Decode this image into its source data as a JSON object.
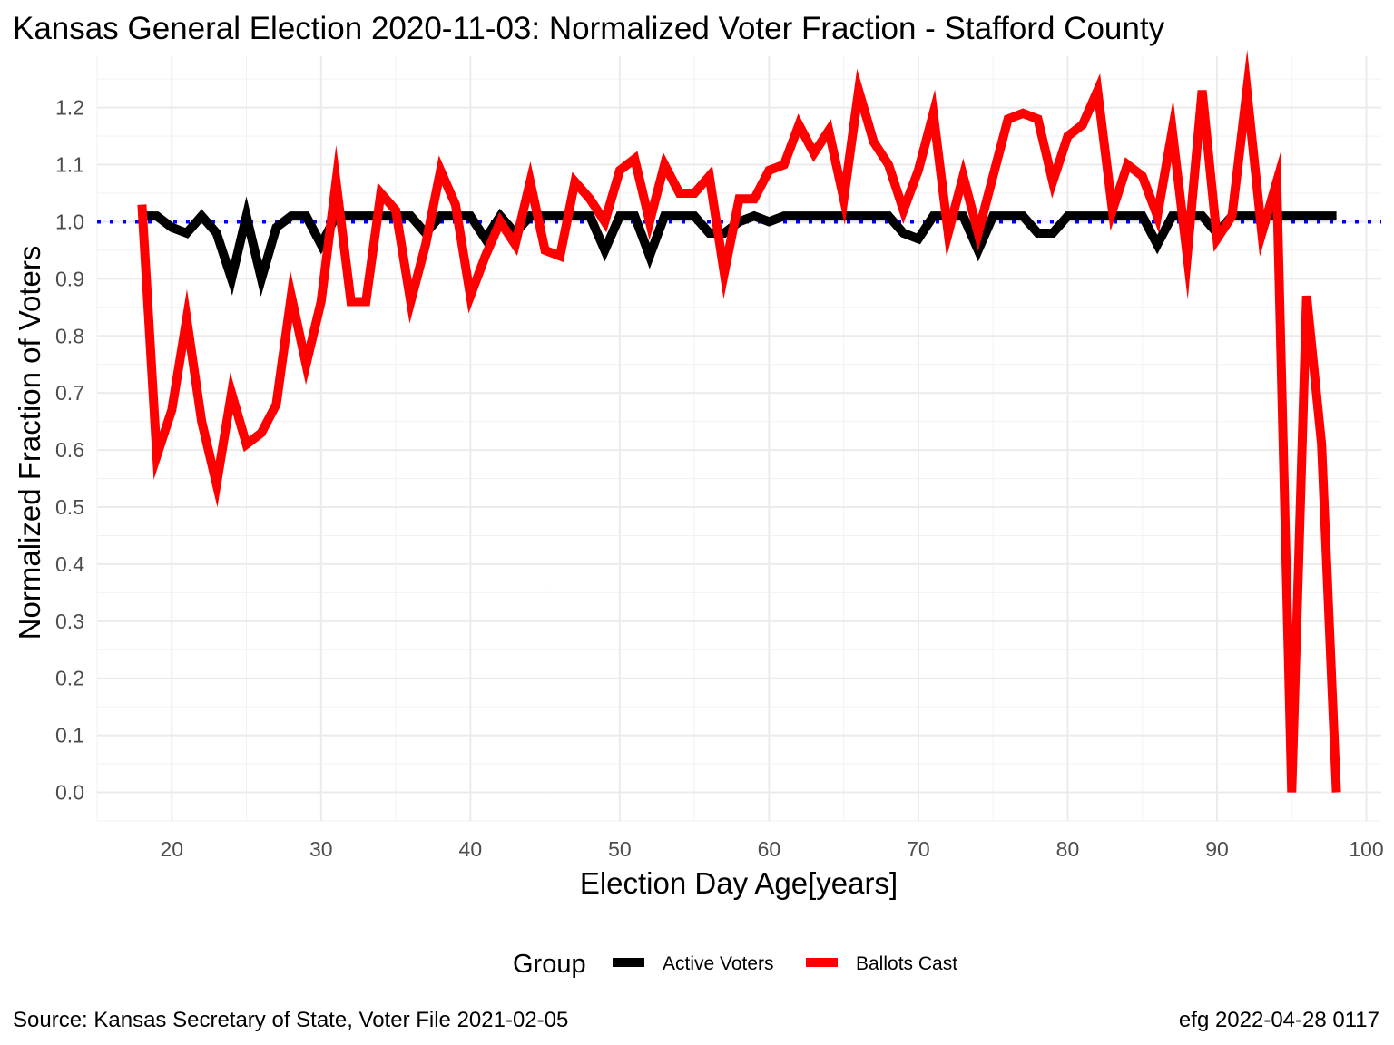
{
  "chart_data": {
    "type": "line",
    "title": "Kansas General Election 2020-11-03:  Normalized Voter Fraction - Stafford County",
    "xlabel": "Election Day Age[years]",
    "ylabel": "Normalized Fraction of Voters",
    "xlim": [
      15,
      101
    ],
    "ylim": [
      -0.05,
      1.29
    ],
    "x_ticks": [
      20,
      30,
      40,
      50,
      60,
      70,
      80,
      90,
      100
    ],
    "y_ticks": [
      0.0,
      0.1,
      0.2,
      0.3,
      0.4,
      0.5,
      0.6,
      0.7,
      0.8,
      0.9,
      1.0,
      1.1,
      1.2
    ],
    "y_tick_labels": [
      "0.0",
      "0.1",
      "0.2",
      "0.3",
      "0.4",
      "0.5",
      "0.6",
      "0.7",
      "0.8",
      "0.9",
      "1.0",
      "1.1",
      "1.2"
    ],
    "grid": true,
    "reference_line": {
      "y": 1.0,
      "color": "#0000ff",
      "style": "dotted"
    },
    "legend": {
      "title": "Group",
      "position": "bottom"
    },
    "x": [
      18,
      19,
      20,
      21,
      22,
      23,
      24,
      25,
      26,
      27,
      28,
      29,
      30,
      31,
      32,
      33,
      34,
      35,
      36,
      37,
      38,
      39,
      40,
      41,
      42,
      43,
      44,
      45,
      46,
      47,
      48,
      49,
      50,
      51,
      52,
      53,
      54,
      55,
      56,
      57,
      58,
      59,
      60,
      61,
      62,
      63,
      64,
      65,
      66,
      67,
      68,
      69,
      70,
      71,
      72,
      73,
      74,
      75,
      76,
      77,
      78,
      79,
      80,
      81,
      82,
      83,
      84,
      85,
      86,
      87,
      88,
      89,
      90,
      91,
      92,
      93,
      94,
      95,
      96,
      97,
      98
    ],
    "series": [
      {
        "name": "Active Voters",
        "color": "#000000",
        "values": [
          1.01,
          1.01,
          0.99,
          0.98,
          1.01,
          0.98,
          0.9,
          1.01,
          0.9,
          0.99,
          1.01,
          1.01,
          0.96,
          1.01,
          1.01,
          1.01,
          1.01,
          1.01,
          1.01,
          0.98,
          1.01,
          1.01,
          1.01,
          0.97,
          1.01,
          0.98,
          1.01,
          1.01,
          1.01,
          1.01,
          1.01,
          0.95,
          1.01,
          1.01,
          0.94,
          1.01,
          1.01,
          1.01,
          0.98,
          0.98,
          1.0,
          1.01,
          1.0,
          1.01,
          1.01,
          1.01,
          1.01,
          1.01,
          1.01,
          1.01,
          1.01,
          0.98,
          0.97,
          1.01,
          1.01,
          1.01,
          0.95,
          1.01,
          1.01,
          1.01,
          0.98,
          0.98,
          1.01,
          1.01,
          1.01,
          1.01,
          1.01,
          1.01,
          0.96,
          1.01,
          1.01,
          1.01,
          0.98,
          1.01,
          1.01,
          1.01,
          1.01,
          1.01,
          1.01,
          1.01,
          1.01
        ]
      },
      {
        "name": "Ballots Cast",
        "color": "#ff0000",
        "values": [
          1.03,
          0.59,
          0.67,
          0.83,
          0.65,
          0.54,
          0.7,
          0.61,
          0.63,
          0.68,
          0.87,
          0.75,
          0.86,
          1.07,
          0.86,
          0.86,
          1.05,
          1.02,
          0.86,
          0.96,
          1.09,
          1.03,
          0.87,
          0.94,
          1.0,
          0.96,
          1.07,
          0.95,
          0.94,
          1.07,
          1.04,
          1.0,
          1.09,
          1.11,
          1.0,
          1.1,
          1.05,
          1.05,
          1.08,
          0.91,
          1.04,
          1.04,
          1.09,
          1.1,
          1.17,
          1.12,
          1.16,
          1.04,
          1.23,
          1.14,
          1.1,
          1.02,
          1.09,
          1.19,
          0.98,
          1.08,
          0.98,
          1.08,
          1.18,
          1.19,
          1.18,
          1.07,
          1.15,
          1.17,
          1.23,
          1.02,
          1.1,
          1.08,
          1.01,
          1.16,
          0.94,
          1.23,
          0.97,
          1.01,
          1.23,
          0.98,
          1.07,
          0.0,
          0.87,
          0.61,
          0.0
        ]
      }
    ]
  },
  "caption": {
    "source": "Source:  Kansas Secretary of State, Voter File  2021-02-05",
    "credit": "efg 2022-04-28 0117"
  }
}
